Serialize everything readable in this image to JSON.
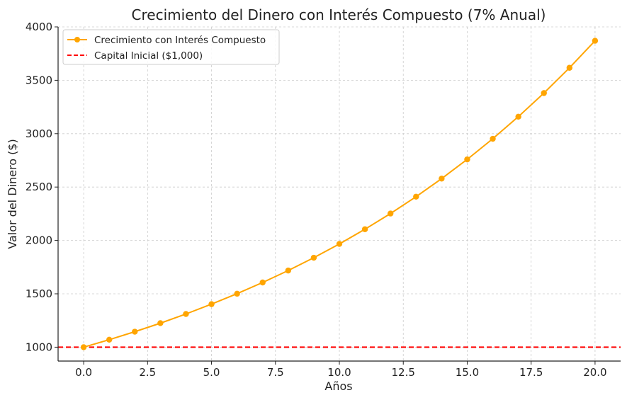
{
  "chart_data": {
    "type": "line",
    "title": "Crecimiento del Dinero con Interés Compuesto (7% Anual)",
    "xlabel": "Años",
    "ylabel": "Valor del Dinero ($)",
    "xlim": [
      -1.0,
      21.0
    ],
    "ylim": [
      870,
      4000
    ],
    "x_ticks": [
      0,
      2.5,
      5,
      7.5,
      10,
      12.5,
      15,
      17.5,
      20
    ],
    "x_tick_labels": [
      "0.0",
      "2.5",
      "5.0",
      "7.5",
      "10.0",
      "12.5",
      "15.0",
      "17.5",
      "20.0"
    ],
    "y_ticks": [
      1000,
      1500,
      2000,
      2500,
      3000,
      3500,
      4000
    ],
    "y_tick_labels": [
      "1000",
      "1500",
      "2000",
      "2500",
      "3000",
      "3500",
      "4000"
    ],
    "grid": true,
    "legend_position": "top-left",
    "series": [
      {
        "name": "Crecimiento con Interés Compuesto",
        "color": "#FFA500",
        "style": "solid",
        "marker": "circle",
        "x": [
          0,
          1,
          2,
          3,
          4,
          5,
          6,
          7,
          8,
          9,
          10,
          11,
          12,
          13,
          14,
          15,
          16,
          17,
          18,
          19,
          20
        ],
        "y": [
          1000,
          1070,
          1145,
          1225,
          1311,
          1403,
          1501,
          1606,
          1718,
          1838,
          1967,
          2105,
          2252,
          2410,
          2579,
          2759,
          2952,
          3159,
          3380,
          3617,
          3870
        ]
      },
      {
        "name": "Capital Inicial ($1,000)",
        "color": "#FF0000",
        "style": "dashed",
        "marker": "none",
        "hline": 1000
      }
    ]
  }
}
